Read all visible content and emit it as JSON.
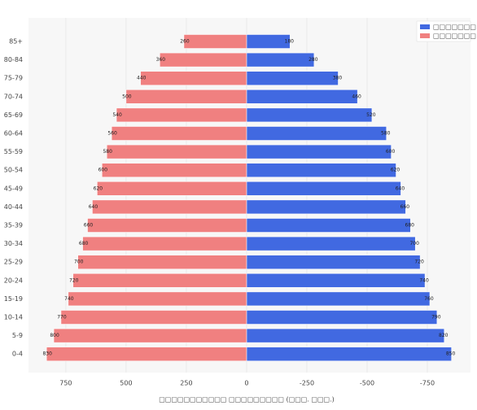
{
  "chart_data": {
    "type": "pyramid",
    "x_label": "□□□□□□□□□□□ □□□□□□□□□ (□□□. □□□.)",
    "categories": [
      "0-4",
      "5-9",
      "10-14",
      "15-19",
      "20-24",
      "25-29",
      "30-34",
      "35-39",
      "40-44",
      "45-49",
      "50-54",
      "55-59",
      "60-64",
      "65-69",
      "70-74",
      "75-79",
      "80-84",
      "85+"
    ],
    "series": [
      {
        "name": "□□□□□□□",
        "color": "#4169e1",
        "values": [
          -850,
          -820,
          -790,
          -760,
          -740,
          -720,
          -700,
          -680,
          -660,
          -640,
          -620,
          -600,
          -580,
          -520,
          -460,
          -380,
          -280,
          -180
        ],
        "value_labels": [
          "850",
          "820",
          "790",
          "760",
          "740",
          "720",
          "700",
          "680",
          "660",
          "640",
          "620",
          "600",
          "580",
          "520",
          "460",
          "380",
          "280",
          "180"
        ]
      },
      {
        "name": "□□□□□□□",
        "color": "#f08080",
        "values": [
          830,
          800,
          770,
          740,
          720,
          700,
          680,
          660,
          640,
          620,
          600,
          580,
          560,
          540,
          500,
          440,
          360,
          260
        ]
      }
    ],
    "xlim": [
      905,
      -929
    ],
    "xticks": [
      750,
      500,
      250,
      0,
      -250,
      -500,
      -750
    ],
    "grid": true,
    "legend": "top-right"
  }
}
